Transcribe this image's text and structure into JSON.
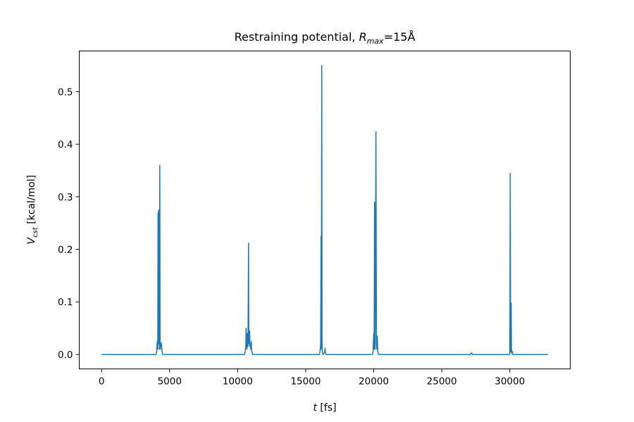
{
  "chart_data": {
    "type": "line",
    "title": {
      "prefix": "Restraining potential, ",
      "var": "R",
      "sub": "max",
      "suffix": "=15Å"
    },
    "xlabel": {
      "var": "t",
      "unit": " [fs]"
    },
    "ylabel": {
      "var": "V",
      "sub": "cst",
      "unit": " [kcal/mol]"
    },
    "xlim": [
      -1640,
      34440
    ],
    "ylim": [
      -0.0275,
      0.5775
    ],
    "xticks": [
      0,
      5000,
      10000,
      15000,
      20000,
      25000,
      30000
    ],
    "xtick_labels": [
      "0",
      "5000",
      "10000",
      "15000",
      "20000",
      "25000",
      "30000"
    ],
    "yticks": [
      0.0,
      0.1,
      0.2,
      0.3,
      0.4,
      0.5
    ],
    "ytick_labels": [
      "0.0",
      "0.1",
      "0.2",
      "0.3",
      "0.4",
      "0.5"
    ],
    "grid": false,
    "series_color": "#1f77b4",
    "series": [
      {
        "x": [
          0,
          4000,
          4050,
          4080,
          4100,
          4130,
          4150,
          4180,
          4200,
          4250,
          4280,
          4300,
          4320,
          4340,
          4360,
          4400,
          4450,
          4500,
          4550,
          4600,
          4700,
          10500,
          10550,
          10600,
          10620,
          10650,
          10680,
          10700,
          10730,
          10760,
          10800,
          10820,
          10850,
          10880,
          10900,
          10930,
          10960,
          11000,
          11020,
          11050,
          11100,
          11200,
          16000,
          16050,
          16100,
          16130,
          16150,
          16180,
          16200,
          16230,
          16260,
          16300,
          16400,
          16420,
          16450,
          16500,
          19900,
          19950,
          20000,
          20030,
          20060,
          20080,
          20100,
          20130,
          20160,
          20200,
          20230,
          20260,
          20300,
          20330,
          20360,
          20400,
          20420,
          20450,
          20500,
          27100,
          27150,
          27200,
          27250,
          30000,
          30030,
          30060,
          30080,
          30100,
          30120,
          30150,
          30180,
          30200,
          30250,
          30300,
          30400,
          32800
        ],
        "y": [
          0,
          0,
          0.005,
          0.02,
          0.025,
          0.01,
          0.27,
          0.02,
          0.275,
          0.01,
          0.36,
          0.02,
          0.01,
          0.015,
          0.022,
          0.02,
          0.005,
          0,
          0,
          0,
          0,
          0,
          0.005,
          0.015,
          0.05,
          0.02,
          0.01,
          0.04,
          0.02,
          0.015,
          0.212,
          0.03,
          0.02,
          0.045,
          0.015,
          0.02,
          0.01,
          0.025,
          0.01,
          0.005,
          0,
          0,
          0,
          0.005,
          0.02,
          0.225,
          0.01,
          0.55,
          0.02,
          0.005,
          0,
          0,
          0.005,
          0.012,
          0.003,
          0,
          0,
          0.005,
          0.04,
          0.01,
          0.29,
          0.02,
          0.01,
          0.17,
          0.424,
          0.02,
          0.01,
          0.035,
          0.005,
          0.002,
          0,
          0,
          0,
          0,
          0,
          0,
          0.002,
          0.003,
          0,
          0,
          0.345,
          0.01,
          0.005,
          0.098,
          0.005,
          0.002,
          0.006,
          0.002,
          0,
          0,
          0,
          0
        ]
      }
    ]
  }
}
